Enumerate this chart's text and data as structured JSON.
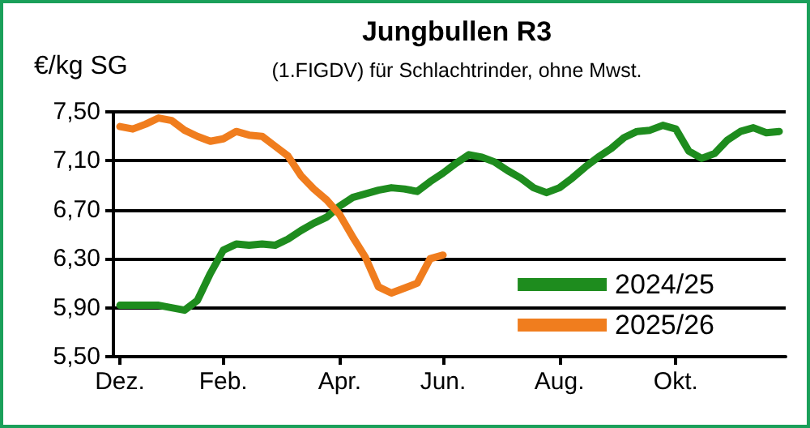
{
  "chart_data": {
    "type": "line",
    "title": "Jungbullen R3",
    "subtitle": "(1.FIGDV) für Schlachtrinder, ohne Mwst.",
    "ylabel": "€/kg SG",
    "categories": [
      "Dez.",
      null,
      null,
      null,
      null,
      null,
      null,
      null,
      "Feb.",
      null,
      null,
      null,
      null,
      null,
      null,
      null,
      null,
      "Apr.",
      null,
      null,
      null,
      null,
      null,
      null,
      null,
      "Jun.",
      null,
      null,
      null,
      null,
      null,
      null,
      null,
      null,
      "Aug.",
      null,
      null,
      null,
      null,
      null,
      null,
      null,
      null,
      "Okt.",
      null,
      null,
      null,
      null,
      null,
      null,
      null,
      null
    ],
    "ylim": [
      5.5,
      7.5
    ],
    "yticks": [
      {
        "value": 5.5,
        "label": "5,50"
      },
      {
        "value": 5.9,
        "label": "5,90"
      },
      {
        "value": 6.3,
        "label": "6,30"
      },
      {
        "value": 6.7,
        "label": "6,70"
      },
      {
        "value": 7.1,
        "label": "7,10"
      },
      {
        "value": 7.5,
        "label": "7,50"
      }
    ],
    "grid": "y",
    "legend": "bottom right",
    "marker": "none",
    "line_style": "solid",
    "series": [
      {
        "name": "2024/25",
        "color": "#1e8c1e",
        "values": [
          5.92,
          5.92,
          5.92,
          5.92,
          5.9,
          5.88,
          5.96,
          6.18,
          6.37,
          6.42,
          6.41,
          6.42,
          6.41,
          6.46,
          6.53,
          6.59,
          6.64,
          6.73,
          6.8,
          6.83,
          6.86,
          6.88,
          6.87,
          6.85,
          6.93,
          7.0,
          7.08,
          7.15,
          7.13,
          7.09,
          7.02,
          6.96,
          6.88,
          6.84,
          6.88,
          6.96,
          7.05,
          7.13,
          7.2,
          7.29,
          7.34,
          7.35,
          7.39,
          7.36,
          7.18,
          7.12,
          7.16,
          7.27,
          7.34,
          7.37,
          7.33,
          7.34
        ]
      },
      {
        "name": "2025/26",
        "color": "#f07d1e",
        "values": [
          7.38,
          7.36,
          7.4,
          7.45,
          7.43,
          7.35,
          7.3,
          7.26,
          7.28,
          7.34,
          7.31,
          7.3,
          7.22,
          7.14,
          6.98,
          6.87,
          6.78,
          6.66,
          6.48,
          6.31,
          6.07,
          6.02,
          6.06,
          6.1,
          6.3,
          6.33,
          null,
          null,
          null,
          null,
          null,
          null,
          null,
          null,
          null,
          null,
          null,
          null,
          null,
          null,
          null,
          null,
          null,
          null,
          null,
          null,
          null,
          null,
          null,
          null,
          null,
          null
        ]
      }
    ]
  }
}
